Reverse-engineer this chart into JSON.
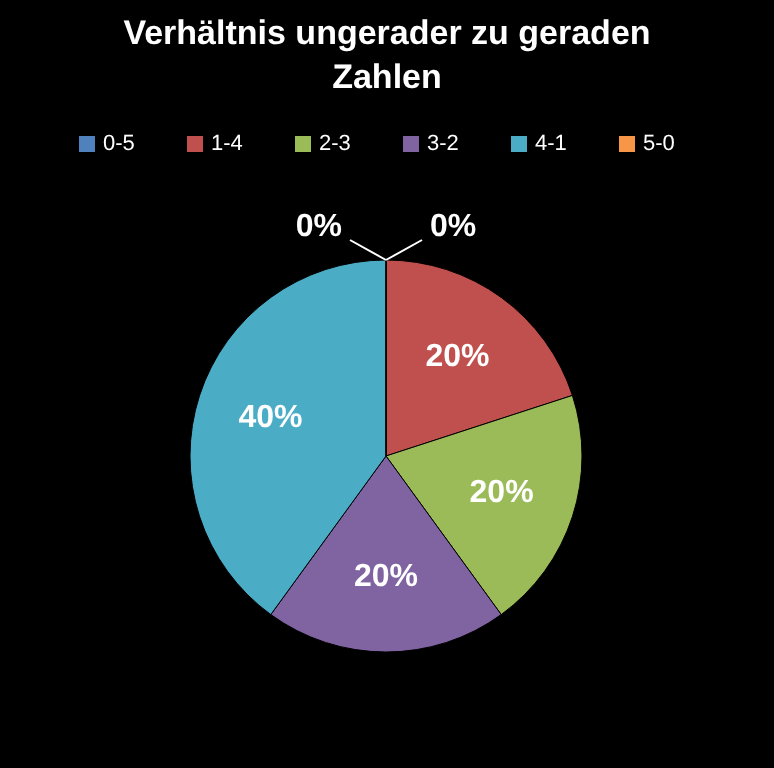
{
  "chart_data": {
    "type": "pie",
    "title": "Verhältnis ungerader zu geraden Zahlen",
    "categories": [
      "0-5",
      "1-4",
      "2-3",
      "3-2",
      "4-1",
      "5-0"
    ],
    "values": [
      0,
      20,
      20,
      20,
      40,
      0
    ],
    "colors": [
      "#4f81bd",
      "#c0504d",
      "#9bbb59",
      "#8064a2",
      "#4bacc6",
      "#f79646"
    ],
    "value_labels": [
      "0%",
      "20%",
      "20%",
      "20%",
      "40%",
      "0%"
    ],
    "legend": "top"
  }
}
